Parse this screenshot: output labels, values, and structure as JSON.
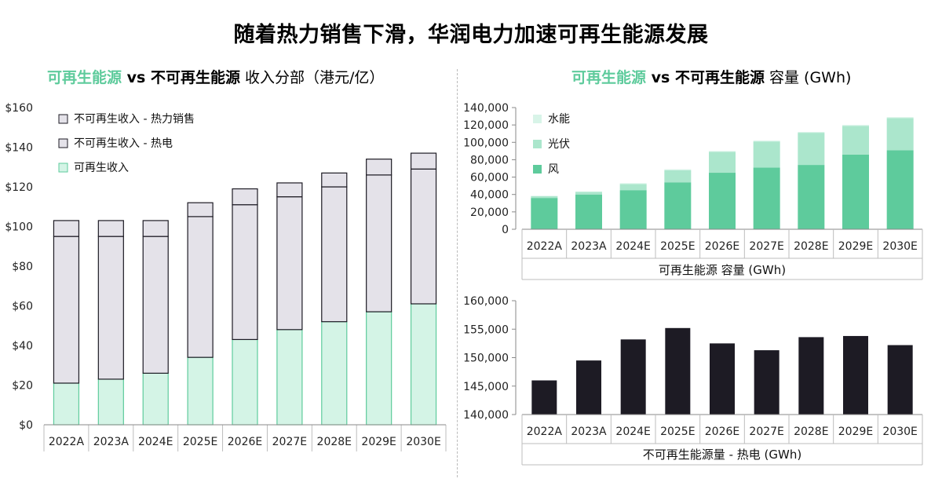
{
  "page": {
    "title": "随着热力销售下滑，华润电力加速可再生能源发展",
    "left_subtitle": {
      "accent": "可再生能源",
      "vs": " vs ",
      "dark": "不可再生能源",
      "light": " 收入分部（港元/亿）"
    },
    "right_subtitle": {
      "accent": "可再生能源",
      "vs": " vs ",
      "dark": "不可再生能源",
      "light": " 容量 (GWh)"
    }
  },
  "chart_data": [
    {
      "type": "bar",
      "stacked": true,
      "categories": [
        "2022A",
        "2023A",
        "2024E",
        "2025E",
        "2026E",
        "2027E",
        "2028E",
        "2029E",
        "2030E"
      ],
      "y_tick_labels": [
        "$0",
        "$20",
        "$40",
        "$60",
        "$80",
        "$100",
        "$120",
        "$140",
        "$160"
      ],
      "ylim": [
        0,
        160
      ],
      "grid": false,
      "legend_position": "top-left",
      "series": [
        {
          "name": "可再生收入",
          "color": "#d4f4e6",
          "values": [
            21,
            23,
            26,
            34,
            43,
            48,
            52,
            57,
            61
          ]
        },
        {
          "name": "不可再生收入 - 热电",
          "color": "#e4e2e9",
          "values": [
            74,
            72,
            69,
            71,
            68,
            67,
            68,
            69,
            68
          ]
        },
        {
          "name": "不可再生收入 - 热力销售",
          "color": "#e4e2e9",
          "values": [
            8,
            8,
            8,
            7,
            8,
            7,
            7,
            8,
            8
          ]
        }
      ]
    },
    {
      "type": "bar",
      "stacked": true,
      "xlabel": "可再生能源 容量 (GWh)",
      "categories": [
        "2022A",
        "2023A",
        "2024E",
        "2025E",
        "2026E",
        "2027E",
        "2028E",
        "2029E",
        "2030E"
      ],
      "y_tick_labels": [
        "0",
        "20,000",
        "40,000",
        "60,000",
        "80,000",
        "100,000",
        "120,000",
        "140,000"
      ],
      "ylim": [
        0,
        140000
      ],
      "grid": false,
      "legend_position": "top-left",
      "series": [
        {
          "name": "风",
          "color": "#5ecb9c",
          "values": [
            36000,
            40000,
            45000,
            54000,
            65000,
            71000,
            74000,
            86000,
            91000
          ]
        },
        {
          "name": "光伏",
          "color": "#abe6cc",
          "values": [
            2000,
            3000,
            7000,
            14000,
            24000,
            30000,
            37000,
            33000,
            37000
          ]
        },
        {
          "name": "水能",
          "color": "#d8f4e8",
          "values": [
            500,
            500,
            1000,
            1000,
            1000,
            1000,
            1000,
            1000,
            1000
          ]
        }
      ]
    },
    {
      "type": "bar",
      "xlabel": "不可再生能源量 - 热电 (GWh)",
      "categories": [
        "2022A",
        "2023A",
        "2024E",
        "2025E",
        "2026E",
        "2027E",
        "2028E",
        "2029E",
        "2030E"
      ],
      "y_tick_labels": [
        "140,000",
        "145,000",
        "150,000",
        "155,000",
        "160,000"
      ],
      "ylim": [
        140000,
        160000
      ],
      "grid": false,
      "series": [
        {
          "color": "#1d1b24",
          "values": [
            146000,
            149500,
            153200,
            155200,
            152500,
            151300,
            153600,
            153800,
            152200
          ]
        }
      ]
    }
  ]
}
